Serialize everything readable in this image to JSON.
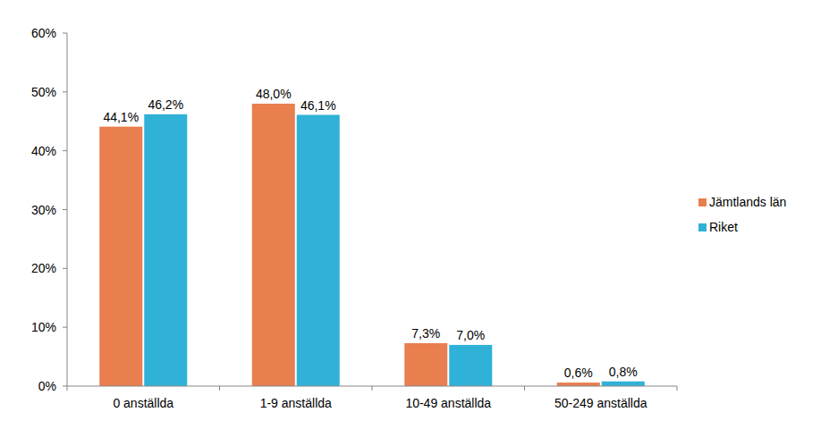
{
  "chart_data": {
    "type": "bar",
    "categories": [
      "0 anställda",
      "1-9 anställda",
      "10-49 anställda",
      "50-249 anställda"
    ],
    "series": [
      {
        "name": "Jämtlands län",
        "color": "#e97e4f",
        "values": [
          44.1,
          48.0,
          7.3,
          0.6
        ],
        "value_labels": [
          "44,1%",
          "48,0%",
          "7,3%",
          "0,6%"
        ]
      },
      {
        "name": "Riket",
        "color": "#2fb1d8",
        "values": [
          46.2,
          46.1,
          7.0,
          0.8
        ],
        "value_labels": [
          "46,2%",
          "46,1%",
          "7,0%",
          "0,8%"
        ]
      }
    ],
    "ylim": [
      0,
      60
    ],
    "yticks": [
      {
        "value": 0,
        "label": "0%"
      },
      {
        "value": 10,
        "label": "10%"
      },
      {
        "value": 20,
        "label": "20%"
      },
      {
        "value": 30,
        "label": "30%"
      },
      {
        "value": 40,
        "label": "40%"
      },
      {
        "value": 50,
        "label": "50%"
      },
      {
        "value": 60,
        "label": "60%"
      }
    ],
    "grid": false,
    "data_labels": true,
    "legend": "right"
  }
}
